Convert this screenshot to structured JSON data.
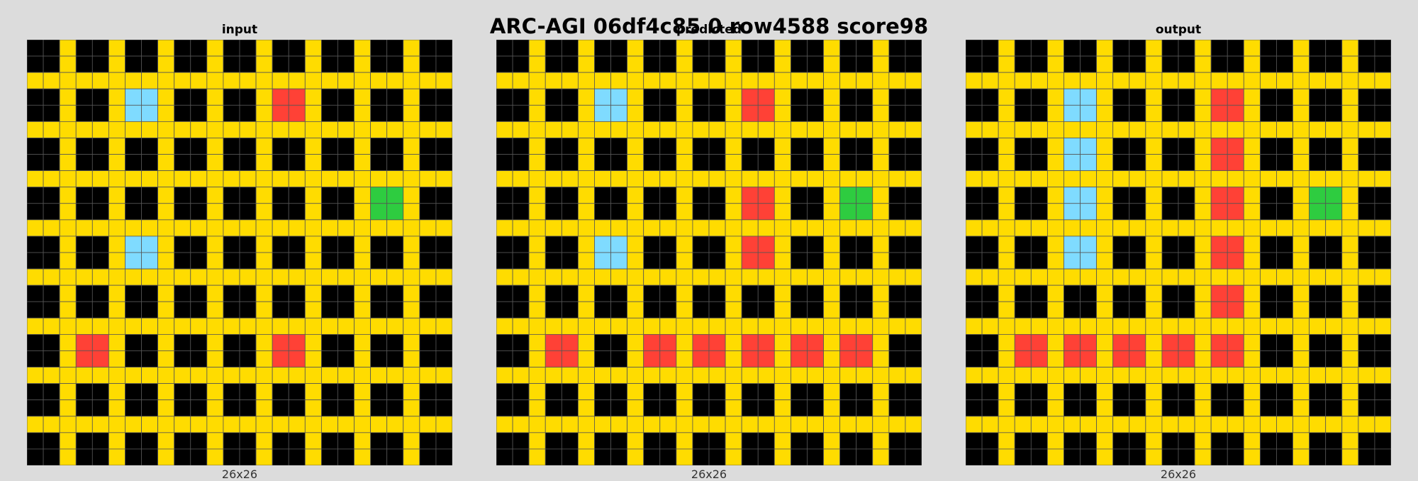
{
  "title": "ARC-AGI 06df4c85 0 row4588 score98",
  "palette": {
    "0": "#000000",
    "1": "#0074D9",
    "2": "#FF4136",
    "3": "#2ECC40",
    "4": "#FFDC00",
    "5": "#AAAAAA",
    "6": "#F012BE",
    "7": "#FF851B",
    "8": "#7FDBFF",
    "9": "#870C25"
  },
  "grid_line_color": "#555555",
  "panels": [
    {
      "title": "input",
      "size": "26x26",
      "grid": [
        "00400400400400400400400400",
        "00400400400400400400400400",
        "44444444444444444444444444",
        "00400488400400422400400400",
        "00400488400400422400400400",
        "44444444444444444444444444",
        "00400400400400400400400400",
        "00400400400400400400400400",
        "44444444444444444444444444",
        "00400400400400400400433400",
        "00400400400400400400433400",
        "44444444444444444444444444",
        "00400488400400400400400400",
        "00400488400400400400400400",
        "44444444444444444444444444",
        "00400400400400400400400400",
        "00400400400400400400400400",
        "44444444444444444444444444",
        "00422400400400422400400400",
        "00422400400400422400400400",
        "44444444444444444444444444",
        "00400400400400400400400400",
        "00400400400400400400400400",
        "44444444444444444444444444",
        "00400400400400400400400400",
        "00400400400400400400400400"
      ]
    },
    {
      "title": "predicted",
      "size": "26x26",
      "grid": [
        "00400400400400400400400400",
        "00400400400400400400400400",
        "44444444444444444444444444",
        "00400488400400422400400400",
        "00400488400400422400400400",
        "44444444444444444444444444",
        "00400400400400400400400400",
        "00400400400400400400400400",
        "44444444444444444444444444",
        "00400400400400422400433400",
        "00400400400400422400433400",
        "44444444444444444444444444",
        "00400488400400422400400400",
        "00400488400400422400400400",
        "44444444444444444444444444",
        "00400400400400400400400400",
        "00400400400400400400400400",
        "44444444444444444444444444",
        "00422400422422422422422400",
        "00422400422422422422422400",
        "44444444444444444444444444",
        "00400400400400400400400400",
        "00400400400400400400400400",
        "44444444444444444444444444",
        "00400400400400400400400400",
        "00400400400400400400400400"
      ]
    },
    {
      "title": "output",
      "size": "26x26",
      "grid": [
        "00400400400400400400400400",
        "00400400400400400400400400",
        "44444444444444444444444444",
        "00400488400400422400400400",
        "00400488400400422400400400",
        "44444444444444444444444444",
        "00400488400400422400400400",
        "00400488400400422400400400",
        "44444444444444444444444444",
        "00400488400400422400433400",
        "00400488400400422400433400",
        "44444444444444444444444444",
        "00400488400400422400400400",
        "00400488400400422400400400",
        "44444444444444444444444444",
        "00400400400400422400400400",
        "00400400400400422400400400",
        "44444444444444444444444444",
        "00422422422422422400400400",
        "00422422422422422400400400",
        "44444444444444444444444444",
        "00400400400400400400400400",
        "00400400400400400400400400",
        "44444444444444444444444444",
        "00400400400400400400400400",
        "00400400400400400400400400"
      ]
    }
  ]
}
